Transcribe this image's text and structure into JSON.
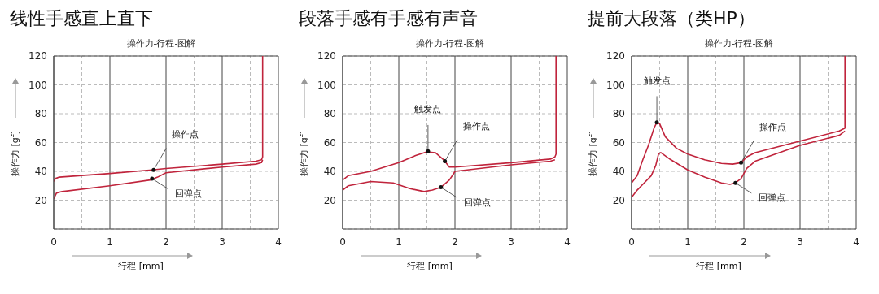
{
  "chart_data": [
    {
      "type": "line",
      "title": "线性手感直上直下",
      "subtitle": "操作力-行程-图解",
      "xlabel": "行程 [mm]",
      "ylabel": "操作力 [gf]",
      "xlim": [
        0,
        4
      ],
      "ylim": [
        0,
        120
      ],
      "xticks": [
        0,
        {
          "value": 0.5,
          "label": null
        },
        1,
        {
          "value": 1.5,
          "label": null
        },
        2,
        {
          "value": 2.5,
          "label": null
        },
        3,
        {
          "value": 3.5,
          "label": null
        },
        4
      ],
      "yticks": [
        20,
        40,
        60,
        80,
        100,
        120
      ],
      "grid": true,
      "marker": "none",
      "line_style": "solid",
      "series": [
        {
          "color": "#c0243c",
          "x": [
            0,
            0.03,
            0.1,
            1,
            1.75,
            2,
            3,
            3.6,
            3.7,
            3.72,
            3.72
          ],
          "values": [
            33,
            35,
            36,
            38.5,
            41,
            42,
            45,
            47,
            48,
            50,
            120
          ]
        },
        {
          "color": "#c0243c",
          "x": [
            0,
            0.05,
            0.15,
            1,
            1.72,
            1.85,
            2,
            3,
            3.6,
            3.7,
            3.72
          ],
          "values": [
            21,
            25,
            26,
            30,
            34,
            36,
            39,
            43,
            45,
            46,
            48
          ]
        }
      ],
      "annotations": [
        {
          "text": "操作点",
          "x": 1.78,
          "y": 41
        },
        {
          "text": "回弹点",
          "x": 1.75,
          "y": 35
        }
      ]
    },
    {
      "type": "line",
      "title": "段落手感有手感有声音",
      "subtitle": "操作力-行程-图解",
      "xlabel": "行程 [mm]",
      "ylabel": "操作力 [gf]",
      "xlim": [
        0,
        4
      ],
      "ylim": [
        0,
        120
      ],
      "xticks": [
        0,
        {
          "value": 0.5,
          "label": null
        },
        1,
        {
          "value": 1.5,
          "label": null
        },
        2,
        {
          "value": 2.5,
          "label": null
        },
        3,
        {
          "value": 3.5,
          "label": null
        },
        4
      ],
      "yticks": [
        20,
        40,
        60,
        80,
        100,
        120
      ],
      "grid": true,
      "marker": "none",
      "line_style": "solid",
      "series": [
        {
          "color": "#c0243c",
          "x": [
            0,
            0.1,
            0.5,
            1,
            1.3,
            1.5,
            1.65,
            1.8,
            1.9,
            2,
            3,
            3.7,
            3.78,
            3.8,
            3.8
          ],
          "values": [
            34,
            37,
            40,
            46,
            51,
            53.5,
            53,
            48,
            43,
            43,
            46,
            48.5,
            50,
            52,
            120
          ]
        },
        {
          "color": "#c0243c",
          "x": [
            0,
            0.1,
            0.5,
            0.9,
            1.2,
            1.45,
            1.6,
            1.75,
            1.9,
            1.97,
            2,
            3,
            3.7,
            3.78
          ],
          "values": [
            27,
            30,
            33,
            32,
            28,
            26,
            27,
            29,
            34,
            38,
            40,
            44.5,
            47,
            48
          ]
        }
      ],
      "annotations": [
        {
          "text": "触发点",
          "x": 1.52,
          "y": 54
        },
        {
          "text": "操作点",
          "x": 1.82,
          "y": 47
        },
        {
          "text": "回弹点",
          "x": 1.75,
          "y": 29
        }
      ]
    },
    {
      "type": "line",
      "title": "提前大段落（类HP）",
      "subtitle": "操作力-行程-图解",
      "xlabel": "行程 [mm]",
      "ylabel": "操作力 [gf]",
      "xlim": [
        0,
        4
      ],
      "ylim": [
        0,
        120
      ],
      "xticks": [
        0,
        {
          "value": 0.5,
          "label": null
        },
        1,
        {
          "value": 1.5,
          "label": null
        },
        2,
        {
          "value": 2.5,
          "label": null
        },
        3,
        {
          "value": 3.5,
          "label": null
        },
        4
      ],
      "yticks": [
        20,
        40,
        60,
        80,
        100,
        120
      ],
      "grid": true,
      "marker": "none",
      "line_style": "solid",
      "series": [
        {
          "color": "#c0243c",
          "x": [
            0,
            0.1,
            0.2,
            0.3,
            0.4,
            0.45,
            0.5,
            0.6,
            0.8,
            1,
            1.3,
            1.6,
            1.8,
            1.95,
            2.05,
            2.2,
            3,
            3.7,
            3.8,
            3.8
          ],
          "values": [
            32,
            37,
            48,
            58,
            70,
            74,
            73,
            64,
            56,
            52,
            48,
            45.5,
            45,
            46,
            50,
            53,
            61,
            68,
            70,
            120
          ]
        },
        {
          "color": "#c0243c",
          "x": [
            0,
            0.1,
            0.2,
            0.35,
            0.43,
            0.48,
            0.52,
            0.7,
            1,
            1.3,
            1.6,
            1.75,
            1.85,
            1.95,
            2.05,
            2.2,
            3,
            3.7,
            3.8
          ],
          "values": [
            22,
            27,
            31,
            37,
            44,
            52,
            53,
            48,
            41,
            36,
            32,
            31,
            32,
            35,
            42,
            47,
            58,
            65,
            68
          ]
        }
      ],
      "annotations": [
        {
          "text": "触发点",
          "x": 0.45,
          "y": 74
        },
        {
          "text": "操作点",
          "x": 1.95,
          "y": 46
        },
        {
          "text": "回弹点",
          "x": 1.85,
          "y": 32
        }
      ]
    }
  ]
}
